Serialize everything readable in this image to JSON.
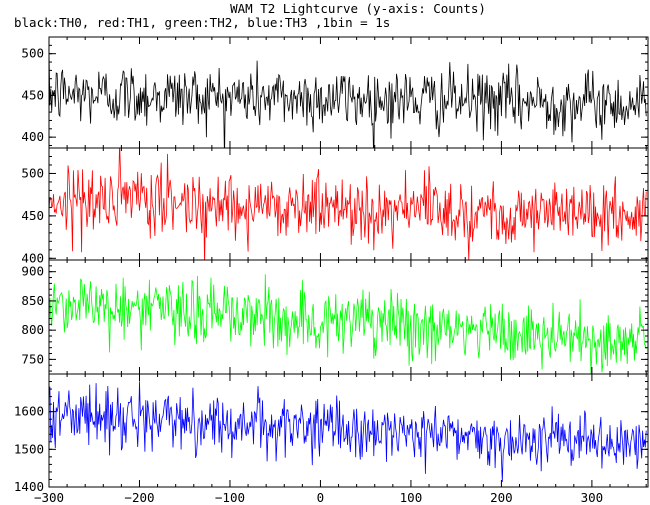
{
  "title": "WAM T2 Lightcurve (y-axis: Counts)",
  "subtitle": "black:TH0, red:TH1, green:TH2, blue:TH3 ,1bin = 1s",
  "chart_data": [
    {
      "type": "line",
      "title": "",
      "color": "#000000",
      "xlim": [
        -300,
        362
      ],
      "ylim": [
        387,
        520
      ],
      "xticks": [
        -300,
        -200,
        -100,
        0,
        100,
        200,
        300
      ],
      "yticks": [
        400,
        450,
        500
      ],
      "series": [
        {
          "x_start": -300,
          "x_end": 360,
          "bin_s": 1,
          "level_start": 452,
          "level_end": 440,
          "noise_sd": 19
        }
      ]
    },
    {
      "type": "line",
      "title": "",
      "color": "#ff0000",
      "xlim": [
        -300,
        362
      ],
      "ylim": [
        398,
        530
      ],
      "xticks": [
        -300,
        -200,
        -100,
        0,
        100,
        200,
        300
      ],
      "yticks": [
        400,
        450,
        500
      ],
      "series": [
        {
          "x_start": -300,
          "x_end": 360,
          "bin_s": 1,
          "level_start": 470,
          "level_end": 450,
          "noise_sd": 20
        }
      ]
    },
    {
      "type": "line",
      "title": "",
      "color": "#00ff00",
      "xlim": [
        -300,
        362
      ],
      "ylim": [
        725,
        920
      ],
      "xticks": [
        -300,
        -200,
        -100,
        0,
        100,
        200,
        300
      ],
      "yticks": [
        750,
        800,
        850,
        900
      ],
      "series": [
        {
          "x_start": -300,
          "x_end": 360,
          "bin_s": 1,
          "level_start": 848,
          "level_end": 778,
          "noise_sd": 28
        }
      ]
    },
    {
      "type": "line",
      "title": "",
      "color": "#0000ff",
      "xlim": [
        -300,
        362
      ],
      "ylim": [
        1400,
        1700
      ],
      "xticks": [
        -300,
        -200,
        -100,
        0,
        100,
        200,
        300
      ],
      "yticks": [
        1400,
        1500,
        1600
      ],
      "series": [
        {
          "x_start": -300,
          "x_end": 360,
          "bin_s": 1,
          "level_start": 1595,
          "level_end": 1510,
          "noise_sd": 38
        }
      ]
    }
  ]
}
